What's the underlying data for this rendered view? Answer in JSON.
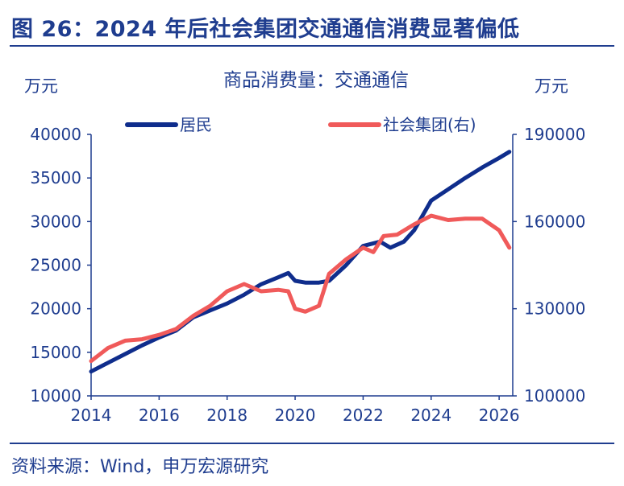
{
  "figure": {
    "title": "图 26：2024 年后社会集团交通通信消费显著偏低",
    "source": "资料来源：Wind，申万宏源研究"
  },
  "colors": {
    "accent": "#1f3d8f",
    "series_resident": "#0f2d8c",
    "series_group": "#f05a5a"
  },
  "chart_data": {
    "type": "line",
    "title": "商品消费量：交通通信",
    "xlabel": "",
    "ylabel_left": "万元",
    "ylabel_right": "万元",
    "xlim": [
      2014,
      2026.4
    ],
    "x_ticks": [
      2014,
      2016,
      2018,
      2020,
      2022,
      2024,
      2026
    ],
    "ylim_left": [
      10000,
      40000
    ],
    "y_ticks_left": [
      10000,
      15000,
      20000,
      25000,
      30000,
      35000,
      40000
    ],
    "ylim_right": [
      100000,
      190000
    ],
    "y_ticks_right": [
      100000,
      130000,
      160000,
      190000
    ],
    "legend": "top",
    "grid": false,
    "series": [
      {
        "name": "居民",
        "axis": "left",
        "color": "#0f2d8c",
        "x": [
          2014.0,
          2014.5,
          2015.0,
          2015.5,
          2016.0,
          2016.5,
          2017.0,
          2017.5,
          2018.0,
          2018.5,
          2019.0,
          2019.5,
          2019.8,
          2020.0,
          2020.3,
          2020.7,
          2021.0,
          2021.5,
          2022.0,
          2022.5,
          2022.8,
          2023.2,
          2023.5,
          2024.0,
          2024.5,
          2025.0,
          2025.5,
          2026.0,
          2026.3
        ],
        "y": [
          12800,
          13800,
          14800,
          15800,
          16700,
          17500,
          19000,
          19800,
          20600,
          21600,
          22800,
          23600,
          24100,
          23200,
          23000,
          23000,
          23200,
          25000,
          27200,
          27700,
          27000,
          27700,
          29000,
          32400,
          33700,
          35000,
          36200,
          37300,
          38000
        ]
      },
      {
        "name": "社会集团(右)",
        "axis": "right",
        "color": "#f05a5a",
        "x": [
          2014.0,
          2014.5,
          2015.0,
          2015.5,
          2016.0,
          2016.5,
          2017.0,
          2017.5,
          2018.0,
          2018.5,
          2019.0,
          2019.5,
          2019.8,
          2020.0,
          2020.3,
          2020.7,
          2021.0,
          2021.5,
          2022.0,
          2022.3,
          2022.6,
          2023.0,
          2023.5,
          2024.0,
          2024.5,
          2025.0,
          2025.5,
          2026.0,
          2026.3
        ],
        "y": [
          112000,
          116500,
          119000,
          119500,
          121000,
          123000,
          127500,
          131000,
          136000,
          138500,
          136000,
          136500,
          136000,
          130000,
          129000,
          131000,
          142000,
          147000,
          151000,
          149500,
          155000,
          155500,
          159000,
          162000,
          160500,
          161000,
          161000,
          157000,
          151000
        ]
      }
    ]
  }
}
